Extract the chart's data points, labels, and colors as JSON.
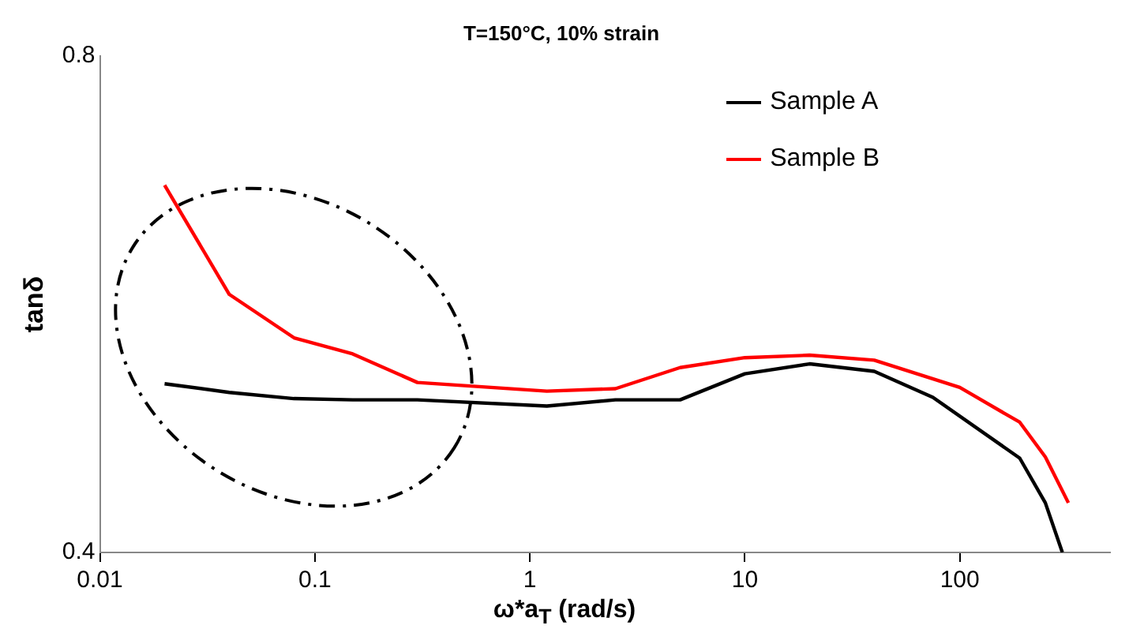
{
  "chart_data": {
    "type": "line",
    "title": "T=150°C, 10% strain",
    "xlabel": "ω*a$_{T}$ (rad/s)",
    "ylabel": "tanδ",
    "log": "x",
    "xlim": [
      0.01,
      500
    ],
    "xticks": [
      0.01,
      0.1,
      1,
      10,
      100
    ],
    "ylim": [
      0.4,
      0.8
    ],
    "yticks": [
      0.4,
      0.8
    ],
    "grid": false,
    "legend": "top right",
    "series": [
      {
        "name": "Sample A",
        "color": "#000000",
        "x": [
          0.02,
          0.04,
          0.08,
          0.15,
          0.3,
          1.2,
          2.5,
          5,
          10,
          20,
          40,
          75,
          190,
          250,
          300
        ],
        "values": [
          0.536,
          0.529,
          0.524,
          0.523,
          0.523,
          0.518,
          0.523,
          0.523,
          0.544,
          0.552,
          0.546,
          0.525,
          0.476,
          0.44,
          0.4
        ]
      },
      {
        "name": "Sample B",
        "color": "#ff0000",
        "x": [
          0.02,
          0.04,
          0.08,
          0.15,
          0.3,
          1.2,
          2.5,
          5,
          10,
          20,
          40,
          100,
          190,
          250,
          320
        ],
        "values": [
          0.696,
          0.608,
          0.573,
          0.56,
          0.537,
          0.53,
          0.532,
          0.549,
          0.557,
          0.559,
          0.555,
          0.533,
          0.505,
          0.477,
          0.44
        ]
      }
    ]
  }
}
